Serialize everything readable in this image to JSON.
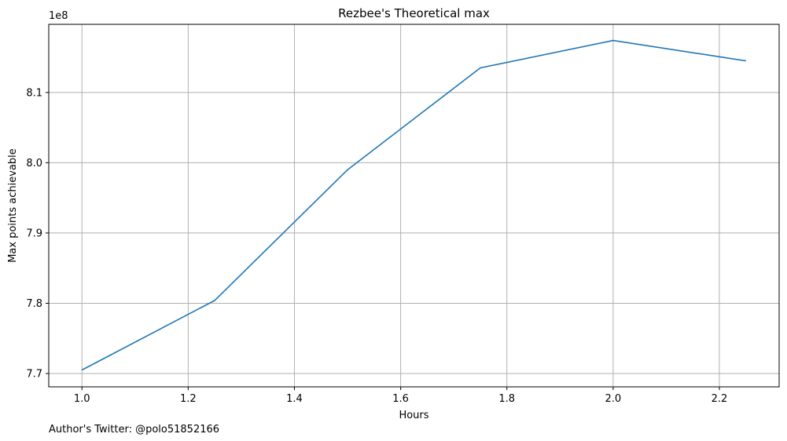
{
  "chart_data": {
    "type": "line",
    "title": "Rezbee's Theoretical max",
    "xlabel": "Hours",
    "ylabel": "Max points achievable",
    "offset_text": "1e8",
    "footer": "Author's Twitter: @polo51852166",
    "xlim": [
      0.9375,
      2.3125
    ],
    "ylim": [
      7.681,
      8.197
    ],
    "xticks": [
      1.0,
      1.2,
      1.4,
      1.6,
      1.8,
      2.0,
      2.2
    ],
    "xtick_labels": [
      "1.0",
      "1.2",
      "1.4",
      "1.6",
      "1.8",
      "2.0",
      "2.2"
    ],
    "yticks": [
      7.7,
      7.8,
      7.9,
      8.0,
      8.1
    ],
    "ytick_labels": [
      "7.7",
      "7.8",
      "7.9",
      "8.0",
      "8.1"
    ],
    "grid": true,
    "series": [
      {
        "color": "#1f77b4",
        "x": [
          1.0,
          1.25,
          1.5,
          1.75,
          2.0,
          2.25
        ],
        "y": [
          7.705,
          7.804,
          7.99,
          8.135,
          8.174,
          8.145
        ]
      }
    ]
  }
}
